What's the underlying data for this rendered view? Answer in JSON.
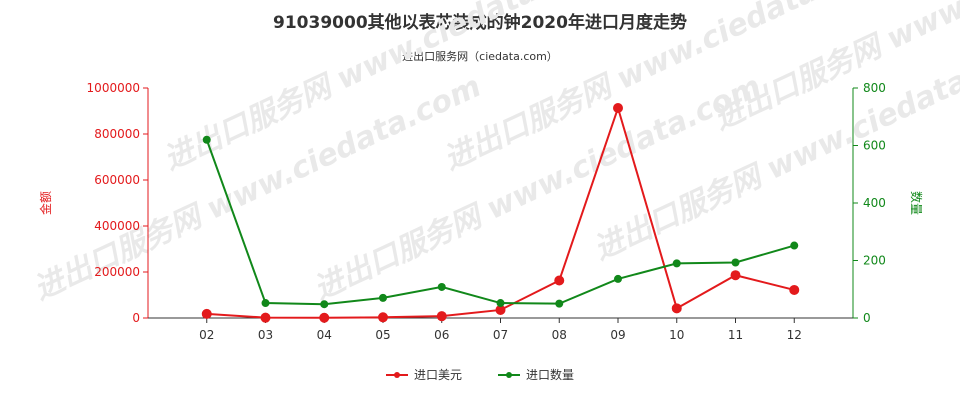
{
  "title": "91039000其他以表芯装成的钟2020年进口月度走势",
  "subtitle": "进出口服务网（ciedata.com）",
  "watermark": "进出口服务网 www.ciedata.com",
  "colors": {
    "amount": "#e31a1c",
    "quantity": "#11881a",
    "axis": "#333333"
  },
  "chart_data": {
    "type": "line",
    "categories": [
      "02",
      "03",
      "04",
      "05",
      "06",
      "07",
      "08",
      "09",
      "10",
      "11",
      "12"
    ],
    "y_left": {
      "label": "金额",
      "ylim": [
        0,
        1000000
      ],
      "ticks": [
        0,
        200000,
        400000,
        600000,
        800000,
        1000000
      ]
    },
    "y_right": {
      "label": "数量",
      "ylim": [
        0,
        800
      ],
      "ticks": [
        0,
        200,
        400,
        600,
        800
      ]
    },
    "grid": false,
    "legend_position": "bottom",
    "series": [
      {
        "name": "进口美元",
        "axis": "left",
        "color": "#e31a1c",
        "values": [
          18000,
          1500,
          1000,
          3000,
          8000,
          35000,
          163000,
          913000,
          42000,
          186000,
          122000
        ]
      },
      {
        "name": "进口数量",
        "axis": "right",
        "color": "#11881a",
        "values": [
          620,
          52,
          48,
          70,
          108,
          52,
          50,
          136,
          190,
          193,
          252
        ]
      }
    ]
  }
}
